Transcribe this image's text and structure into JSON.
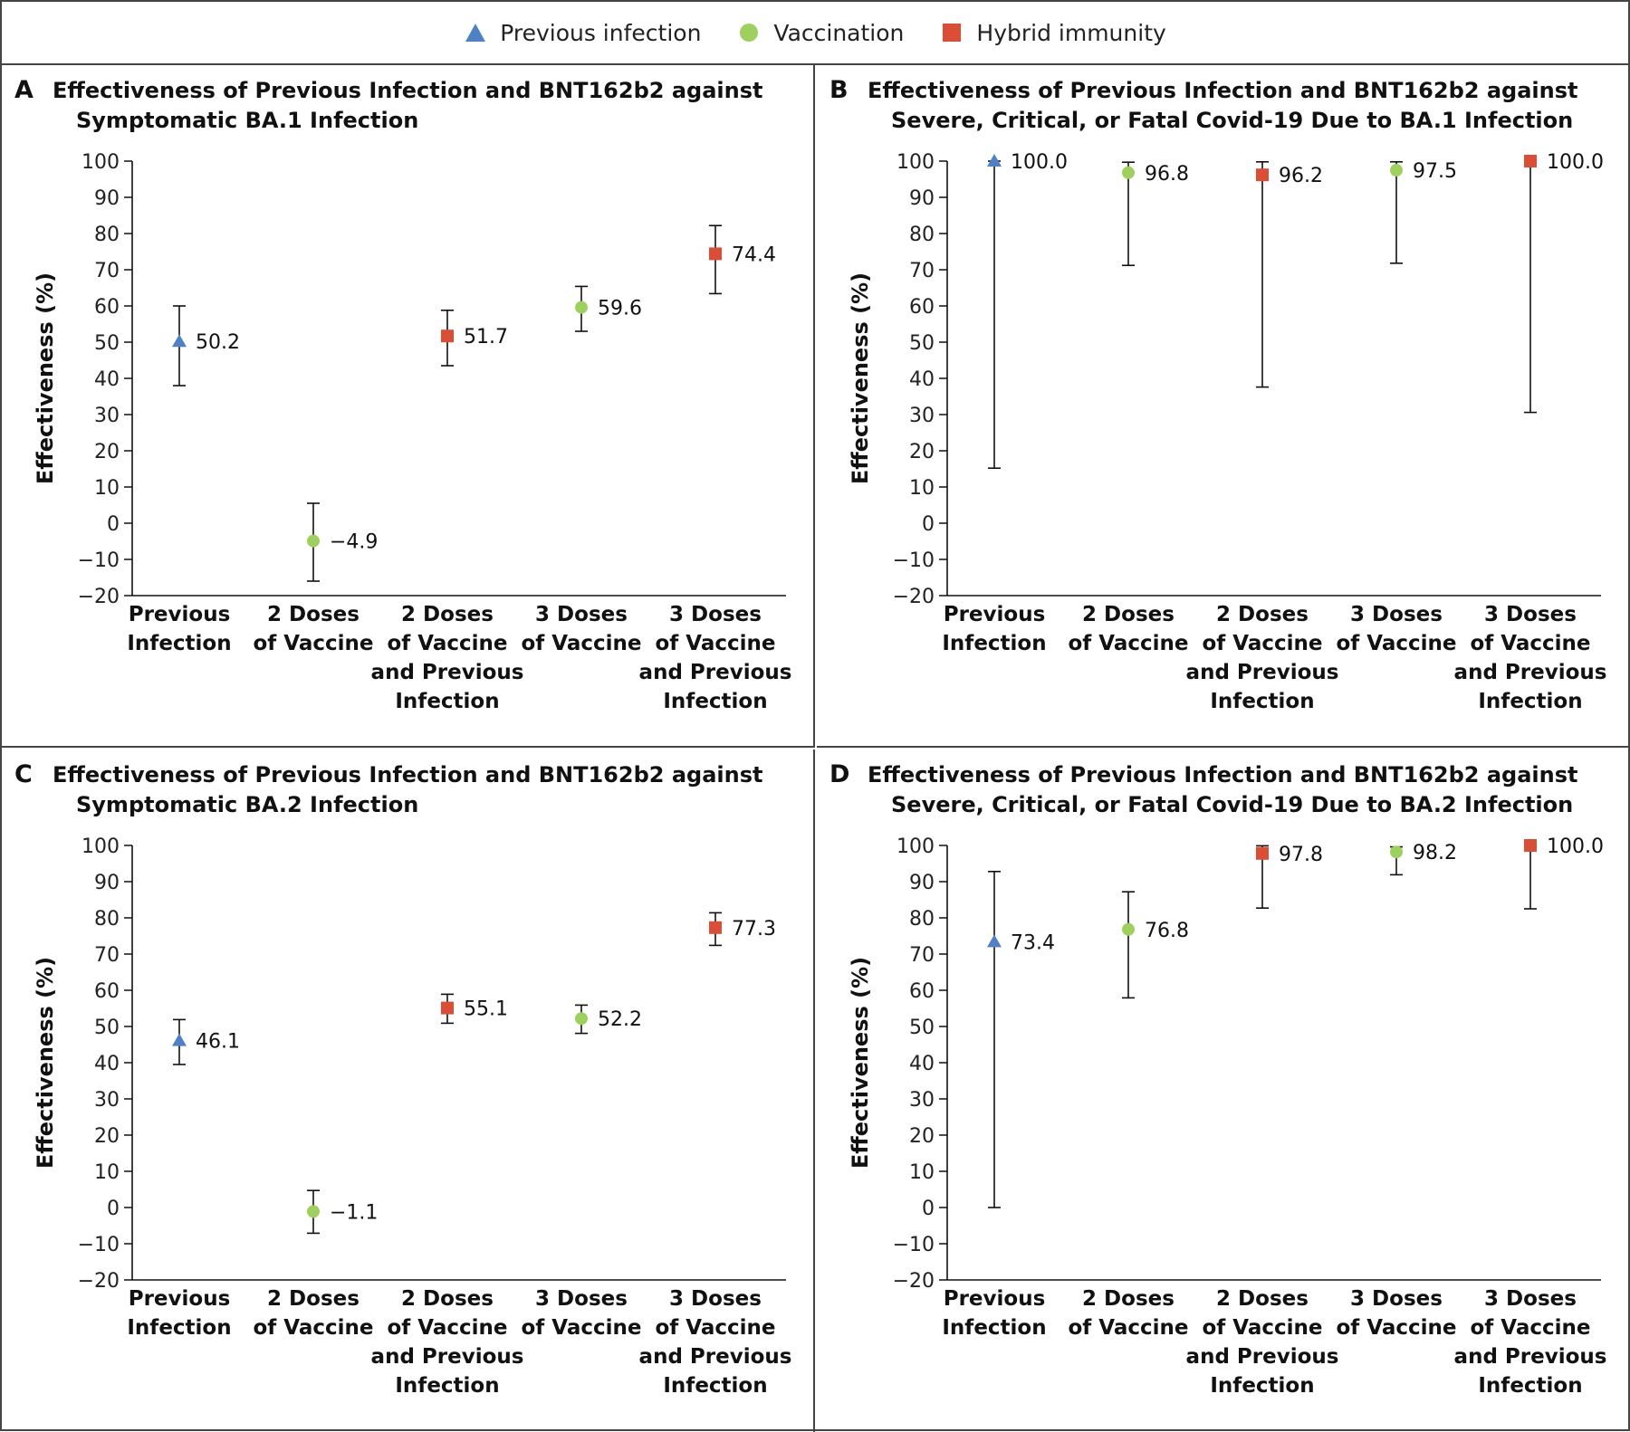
{
  "legend": [
    {
      "label": "Previous infection",
      "marker": "triangle",
      "color": "#4f81c7"
    },
    {
      "label": "Vaccination",
      "marker": "circle",
      "color": "#9ed05e"
    },
    {
      "label": "Hybrid immunity",
      "marker": "square",
      "color": "#d94e35"
    }
  ],
  "chart_data": [
    {
      "panel": "A",
      "type": "scatter",
      "title": [
        "Effectiveness of Previous Infection and BNT162b2 against",
        "Symptomatic BA.1 Infection"
      ],
      "ylabel": "Effectiveness (%)",
      "ylim": [
        -20,
        100
      ],
      "yticks": [
        "100",
        "90",
        "80",
        "70",
        "60",
        "50",
        "40",
        "30",
        "20",
        "10",
        "0",
        "−10",
        "−20"
      ],
      "categories": [
        [
          "Previous",
          "Infection"
        ],
        [
          "2 Doses",
          "of Vaccine"
        ],
        [
          "2 Doses",
          "of Vaccine",
          "and Previous",
          "Infection"
        ],
        [
          "3 Doses",
          "of Vaccine"
        ],
        [
          "3 Doses",
          "of Vaccine",
          "and Previous",
          "Infection"
        ]
      ],
      "points": [
        {
          "value": 50.2,
          "low": 38.0,
          "high": 60.0,
          "label": "50.2",
          "group": "triangle"
        },
        {
          "value": -4.9,
          "low": -16.0,
          "high": 5.5,
          "label": "−4.9",
          "group": "circle"
        },
        {
          "value": 51.7,
          "low": 43.5,
          "high": 58.8,
          "label": "51.7",
          "group": "square"
        },
        {
          "value": 59.6,
          "low": 53.0,
          "high": 65.4,
          "label": "59.6",
          "group": "circle"
        },
        {
          "value": 74.4,
          "low": 63.4,
          "high": 82.2,
          "label": "74.4",
          "group": "square"
        }
      ]
    },
    {
      "panel": "B",
      "type": "scatter",
      "title": [
        "Effectiveness of Previous Infection and BNT162b2 against",
        "Severe, Critical, or Fatal Covid-19 Due to BA.1 Infection"
      ],
      "ylabel": "Effectiveness (%)",
      "ylim": [
        -20,
        100
      ],
      "yticks": [
        "100",
        "90",
        "80",
        "70",
        "60",
        "50",
        "40",
        "30",
        "20",
        "10",
        "0",
        "−10",
        "−20"
      ],
      "categories": [
        [
          "Previous",
          "Infection"
        ],
        [
          "2 Doses",
          "of Vaccine"
        ],
        [
          "2 Doses",
          "of Vaccine",
          "and Previous",
          "Infection"
        ],
        [
          "3 Doses",
          "of Vaccine"
        ],
        [
          "3 Doses",
          "of Vaccine",
          "and Previous",
          "Infection"
        ]
      ],
      "points": [
        {
          "value": 100.0,
          "low": 15.2,
          "high": 100.0,
          "label": "100.0",
          "group": "triangle"
        },
        {
          "value": 96.8,
          "low": 71.2,
          "high": 99.7,
          "label": "96.8",
          "group": "circle"
        },
        {
          "value": 96.2,
          "low": 37.6,
          "high": 99.8,
          "label": "96.2",
          "group": "square"
        },
        {
          "value": 97.5,
          "low": 71.8,
          "high": 99.8,
          "label": "97.5",
          "group": "circle"
        },
        {
          "value": 100.0,
          "low": 30.6,
          "high": 100.0,
          "label": "100.0",
          "group": "square"
        }
      ]
    },
    {
      "panel": "C",
      "type": "scatter",
      "title": [
        "Effectiveness of Previous Infection and BNT162b2 against",
        "Symptomatic BA.2 Infection"
      ],
      "ylabel": "Effectiveness (%)",
      "ylim": [
        -20,
        100
      ],
      "yticks": [
        "100",
        "90",
        "80",
        "70",
        "60",
        "50",
        "40",
        "30",
        "20",
        "10",
        "0",
        "−10",
        "−20"
      ],
      "categories": [
        [
          "Previous",
          "Infection"
        ],
        [
          "2 Doses",
          "of Vaccine"
        ],
        [
          "2 Doses",
          "of Vaccine",
          "and Previous",
          "Infection"
        ],
        [
          "3 Doses",
          "of Vaccine"
        ],
        [
          "3 Doses",
          "of Vaccine",
          "and Previous",
          "Infection"
        ]
      ],
      "points": [
        {
          "value": 46.1,
          "low": 39.5,
          "high": 51.9,
          "label": "46.1",
          "group": "triangle"
        },
        {
          "value": -1.1,
          "low": -7.1,
          "high": 4.7,
          "label": "−1.1",
          "group": "circle"
        },
        {
          "value": 55.1,
          "low": 50.9,
          "high": 58.9,
          "label": "55.1",
          "group": "square"
        },
        {
          "value": 52.2,
          "low": 48.1,
          "high": 55.9,
          "label": "52.2",
          "group": "circle"
        },
        {
          "value": 77.3,
          "low": 72.4,
          "high": 81.4,
          "label": "77.3",
          "group": "square"
        }
      ]
    },
    {
      "panel": "D",
      "type": "scatter",
      "title": [
        "Effectiveness of Previous Infection and BNT162b2 against",
        "Severe, Critical, or Fatal Covid-19 Due to BA.2 Infection"
      ],
      "ylabel": "Effectiveness (%)",
      "ylim": [
        -20,
        100
      ],
      "yticks": [
        "100",
        "90",
        "80",
        "70",
        "60",
        "50",
        "40",
        "30",
        "20",
        "10",
        "0",
        "−10",
        "−20"
      ],
      "categories": [
        [
          "Previous",
          "Infection"
        ],
        [
          "2 Doses",
          "of Vaccine"
        ],
        [
          "2 Doses",
          "of Vaccine",
          "and Previous",
          "Infection"
        ],
        [
          "3 Doses",
          "of Vaccine"
        ],
        [
          "3 Doses",
          "of Vaccine",
          "and Previous",
          "Infection"
        ]
      ],
      "points": [
        {
          "value": 73.4,
          "low": 0.0,
          "high": 92.8,
          "label": "73.4",
          "group": "triangle"
        },
        {
          "value": 76.8,
          "low": 57.9,
          "high": 87.2,
          "label": "76.8",
          "group": "circle"
        },
        {
          "value": 97.8,
          "low": 82.7,
          "high": 99.9,
          "label": "97.8",
          "group": "square"
        },
        {
          "value": 98.2,
          "low": 91.9,
          "high": 99.6,
          "label": "98.2",
          "group": "circle"
        },
        {
          "value": 100.0,
          "low": 82.5,
          "high": 100.0,
          "label": "100.0",
          "group": "square"
        }
      ]
    }
  ]
}
